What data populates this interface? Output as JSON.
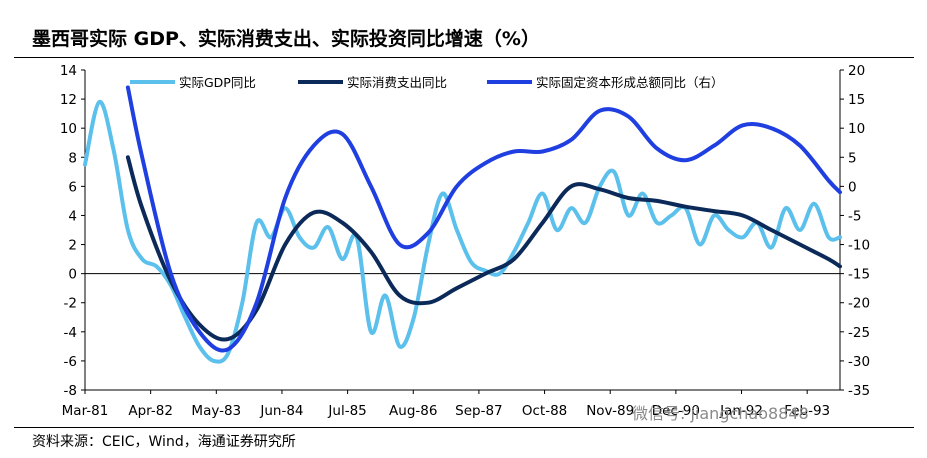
{
  "title": "墨西哥实际 GDP、实际消费支出、实际投资同比增速（%）",
  "source": "资料来源：CEIC，Wind，海通证券研究所",
  "watermark": "微信号: jiangchao8848",
  "colors": {
    "gdp": "#5bc0eb",
    "consumption": "#0b2a59",
    "investment": "#1f3fe0"
  },
  "chart_data": {
    "type": "line",
    "x_tick_labels": [
      "Mar-81",
      "Apr-82",
      "May-83",
      "Jun-84",
      "Jul-85",
      "Aug-86",
      "Sep-87",
      "Oct-88",
      "Nov-89",
      "Dec-90",
      "Jan-92",
      "Feb-93"
    ],
    "x_range": [
      1981.0,
      1994.2
    ],
    "y_left": {
      "range": [
        -8,
        14
      ],
      "ticks": [
        -8,
        -6,
        -4,
        -2,
        0,
        2,
        4,
        6,
        8,
        10,
        12,
        14
      ]
    },
    "y_right": {
      "range": [
        -35,
        20
      ],
      "ticks": [
        -35,
        -30,
        -25,
        -20,
        -15,
        -10,
        -5,
        0,
        5,
        10,
        15,
        20
      ]
    },
    "legend_position": "top",
    "series": [
      {
        "name": "实际GDP同比",
        "axis": "left",
        "x": [
          1981.0,
          1981.25,
          1981.5,
          1981.75,
          1982.0,
          1982.25,
          1982.5,
          1982.75,
          1983.0,
          1983.25,
          1983.5,
          1983.75,
          1984.0,
          1984.25,
          1984.5,
          1984.75,
          1985.0,
          1985.25,
          1985.5,
          1985.75,
          1986.0,
          1986.25,
          1986.5,
          1986.75,
          1987.0,
          1987.25,
          1987.5,
          1987.75,
          1988.0,
          1988.25,
          1988.5,
          1988.75,
          1989.0,
          1989.25,
          1989.5,
          1989.75,
          1990.0,
          1990.25,
          1990.5,
          1990.75,
          1991.0,
          1991.25,
          1991.5,
          1991.75,
          1992.0,
          1992.25,
          1992.5,
          1992.75,
          1993.0,
          1993.25,
          1993.5,
          1993.75,
          1994.0,
          1994.2
        ],
        "values": [
          7.5,
          11.8,
          8.5,
          3.0,
          1.0,
          0.5,
          -0.8,
          -3.0,
          -5.0,
          -6.0,
          -5.5,
          -2.0,
          3.5,
          2.5,
          4.5,
          2.5,
          1.8,
          3.2,
          1.0,
          2.5,
          -4.0,
          -1.5,
          -5.0,
          -3.0,
          2.0,
          5.5,
          3.0,
          0.8,
          0.2,
          0.0,
          1.5,
          3.5,
          5.5,
          3.0,
          4.5,
          3.5,
          6.0,
          7.0,
          4.0,
          5.5,
          3.5,
          4.0,
          4.5,
          2.0,
          4.0,
          3.0,
          2.5,
          3.5,
          1.8,
          4.5,
          3.0,
          4.8,
          2.5,
          2.5
        ]
      },
      {
        "name": "实际消费支出同比",
        "axis": "left",
        "x": [
          1981.75,
          1982.0,
          1982.5,
          1983.0,
          1983.5,
          1984.0,
          1984.5,
          1985.0,
          1985.5,
          1986.0,
          1986.5,
          1987.0,
          1987.5,
          1988.0,
          1988.5,
          1989.0,
          1989.5,
          1990.0,
          1990.5,
          1991.0,
          1991.5,
          1992.0,
          1992.5,
          1993.0,
          1993.5,
          1994.0,
          1994.2
        ],
        "values": [
          8.0,
          4.5,
          -0.5,
          -3.5,
          -4.5,
          -2.5,
          2.0,
          4.2,
          3.5,
          1.5,
          -1.5,
          -2.0,
          -1.0,
          0.0,
          1.0,
          3.5,
          6.0,
          5.8,
          5.2,
          5.0,
          4.6,
          4.3,
          4.0,
          3.0,
          2.0,
          1.0,
          0.5
        ]
      },
      {
        "name": "实际固定资本形成总额同比（右）",
        "axis": "right",
        "x": [
          1981.75,
          1982.0,
          1982.5,
          1983.0,
          1983.5,
          1984.0,
          1984.5,
          1985.0,
          1985.5,
          1986.0,
          1986.5,
          1987.0,
          1987.5,
          1988.0,
          1988.5,
          1989.0,
          1989.5,
          1990.0,
          1990.5,
          1991.0,
          1991.5,
          1992.0,
          1992.5,
          1993.0,
          1993.5,
          1994.0,
          1994.2
        ],
        "values": [
          17.0,
          5.0,
          -15.0,
          -25.0,
          -28.0,
          -20.0,
          -2.0,
          7.0,
          9.0,
          0.0,
          -10.0,
          -8.0,
          0.0,
          4.0,
          6.0,
          6.0,
          8.0,
          13.0,
          12.0,
          6.5,
          4.5,
          7.0,
          10.5,
          10.0,
          7.0,
          1.0,
          -1.0
        ]
      }
    ]
  }
}
